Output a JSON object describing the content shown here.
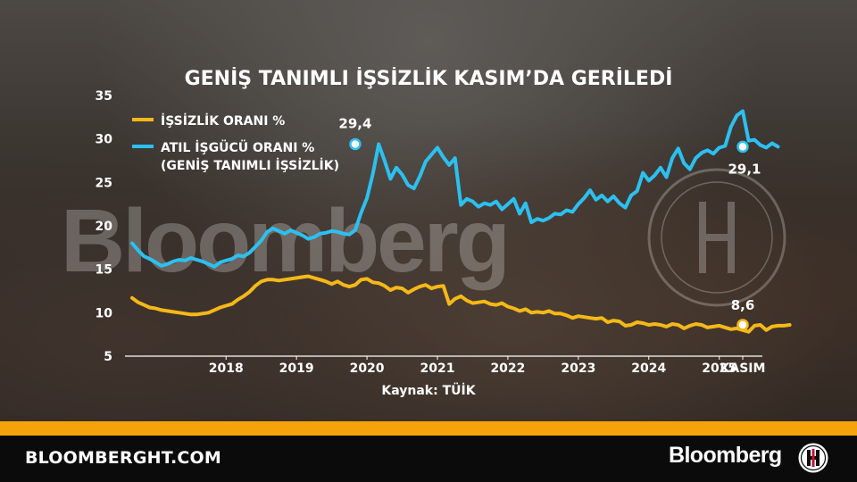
{
  "chart_data": {
    "type": "line",
    "title": "GENİŞ TANIMLI İŞSİZLİK KASIM’DA GERİLEDİ",
    "ylim": [
      5,
      35
    ],
    "y_ticks": [
      5,
      10,
      15,
      20,
      25,
      30,
      35
    ],
    "x_tick_labels": [
      "2018",
      "2019",
      "2020",
      "2021",
      "2022",
      "2023",
      "2024",
      "2025",
      "KASIM"
    ],
    "x_range": [
      "2017-03",
      "2025-11"
    ],
    "source_note": "Kaynak: TÜİK",
    "legend_position": "top-left",
    "grid": false,
    "series": [
      {
        "name": "İŞSİZLİK ORANI %",
        "color": "#f5b818",
        "start": "2017-03",
        "frequency": "monthly",
        "values": [
          11.7,
          11.2,
          10.9,
          10.6,
          10.5,
          10.3,
          10.2,
          10.1,
          10.0,
          9.9,
          9.8,
          9.8,
          9.9,
          10.0,
          10.3,
          10.6,
          10.8,
          11.0,
          11.5,
          11.9,
          12.4,
          13.1,
          13.6,
          13.8,
          13.8,
          13.7,
          13.8,
          13.9,
          14.0,
          14.1,
          14.2,
          14.0,
          13.8,
          13.6,
          13.3,
          13.6,
          13.2,
          13.0,
          13.2,
          13.8,
          13.9,
          13.5,
          13.4,
          13.1,
          12.6,
          12.9,
          12.8,
          12.3,
          12.7,
          13.0,
          13.2,
          12.8,
          13.0,
          13.1,
          11.0,
          11.6,
          11.9,
          11.4,
          11.1,
          11.2,
          11.3,
          11.0,
          10.9,
          11.1,
          10.7,
          10.5,
          10.2,
          10.4,
          10.0,
          10.1,
          10.0,
          10.2,
          9.9,
          9.9,
          9.7,
          9.4,
          9.6,
          9.5,
          9.4,
          9.3,
          9.4,
          8.9,
          9.1,
          9.0,
          8.5,
          8.6,
          8.9,
          8.8,
          8.6,
          8.7,
          8.6,
          8.4,
          8.7,
          8.6,
          8.2,
          8.5,
          8.7,
          8.6,
          8.3,
          8.4,
          8.5,
          8.3,
          8.1,
          8.2,
          8.0,
          7.8,
          8.5,
          8.6,
          8.0,
          8.4,
          8.5,
          8.5,
          8.6
        ]
      },
      {
        "name": "ATIL İŞGÜCÜ ORANI %",
        "name_line2": "(GENİŞ TANIMLI İŞSİZLİK)",
        "color": "#2cc0f0",
        "start": "2017-03",
        "frequency": "monthly",
        "values": [
          18.0,
          17.2,
          16.5,
          16.2,
          15.8,
          15.4,
          15.6,
          15.9,
          16.1,
          16.0,
          16.3,
          16.1,
          15.9,
          15.6,
          15.3,
          15.8,
          16.0,
          16.2,
          16.6,
          16.5,
          16.9,
          17.6,
          18.3,
          19.3,
          19.7,
          19.4,
          19.1,
          19.5,
          19.2,
          18.9,
          18.5,
          18.7,
          19.1,
          19.2,
          19.4,
          19.3,
          19.1,
          19.0,
          19.5,
          21.5,
          23.2,
          26.0,
          29.4,
          27.5,
          25.4,
          26.7,
          25.9,
          24.7,
          24.3,
          25.7,
          27.4,
          28.2,
          29.0,
          27.9,
          27.0,
          27.8,
          22.4,
          23.1,
          22.8,
          22.2,
          22.6,
          22.4,
          22.8,
          21.9,
          22.5,
          23.1,
          21.4,
          22.6,
          20.4,
          20.8,
          20.6,
          20.9,
          21.4,
          21.3,
          21.8,
          21.6,
          22.5,
          23.2,
          24.1,
          23.0,
          23.5,
          22.8,
          23.4,
          22.6,
          22.1,
          23.5,
          24.0,
          26.1,
          25.2,
          25.8,
          26.7,
          25.6,
          27.8,
          28.9,
          27.2,
          26.5,
          27.8,
          28.4,
          28.7,
          28.3,
          29.0,
          29.2,
          31.4,
          32.7,
          33.2,
          29.8,
          29.9,
          29.3,
          29.0,
          29.5,
          29.1
        ]
      }
    ],
    "annotations": [
      {
        "text": "29,4",
        "series": 1,
        "date": "2020-05",
        "value": 29.4
      },
      {
        "text": "29,1",
        "series": 1,
        "date": "2025-11",
        "value": 29.1
      },
      {
        "text": "8,6",
        "series": 0,
        "date": "2025-11",
        "value": 8.6
      }
    ]
  },
  "watermark": {
    "text": "Bloomberg"
  },
  "footer": {
    "url": "BLOOMBERGHT.COM",
    "brand": "Bloomberg",
    "brand_colors": {
      "band": "#f6a20b",
      "bar": "#0b0b0b"
    }
  }
}
